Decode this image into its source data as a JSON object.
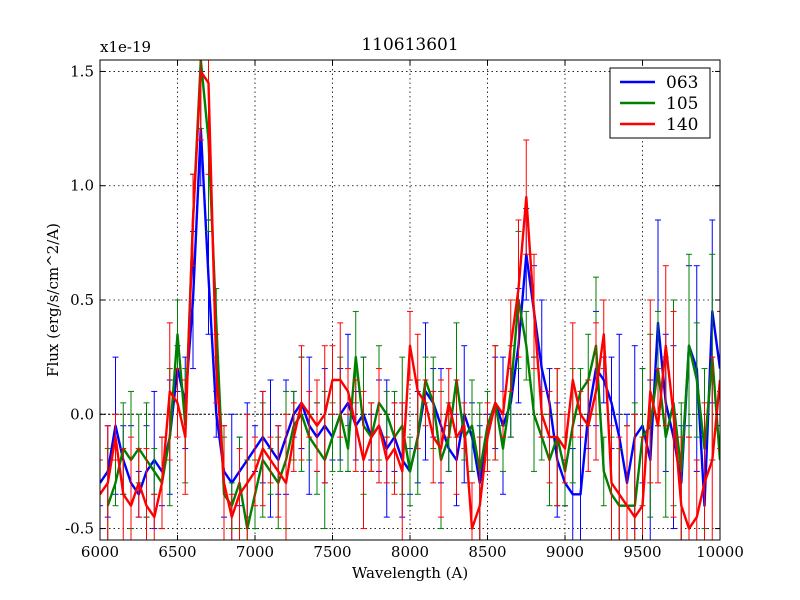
{
  "chart_data": {
    "type": "line",
    "title": "110613601",
    "xlabel": "Wavelength (A)",
    "ylabel": "Flux (erg/s/cm^2/A)",
    "y_multiplier_label": "x1e-19",
    "xlim": [
      6000,
      10000
    ],
    "ylim": [
      -0.55,
      1.55
    ],
    "xticks": [
      6000,
      6500,
      7000,
      7500,
      8000,
      8500,
      9000,
      9500,
      10000
    ],
    "xtick_labels": [
      "6000",
      "6500",
      "7000",
      "7500",
      "8000",
      "8500",
      "9000",
      "9500",
      "10000"
    ],
    "yticks": [
      -0.5,
      0.0,
      0.5,
      1.0,
      1.5
    ],
    "ytick_labels": [
      "-0.5",
      "0.0",
      "0.5",
      "1.0",
      "1.5"
    ],
    "grid": true,
    "legend_position": "top-right",
    "series": [
      {
        "name": "063",
        "color": "#0000ff",
        "x": [
          6000,
          6050,
          6100,
          6150,
          6200,
          6250,
          6300,
          6350,
          6400,
          6450,
          6500,
          6550,
          6600,
          6650,
          6700,
          6750,
          6800,
          6850,
          6900,
          6950,
          7000,
          7050,
          7100,
          7150,
          7200,
          7250,
          7300,
          7350,
          7400,
          7450,
          7500,
          7550,
          7600,
          7650,
          7700,
          7750,
          7800,
          7850,
          7900,
          7950,
          8000,
          8050,
          8100,
          8150,
          8200,
          8250,
          8300,
          8350,
          8400,
          8450,
          8500,
          8550,
          8600,
          8650,
          8700,
          8750,
          8800,
          8850,
          8900,
          8950,
          9000,
          9050,
          9100,
          9150,
          9200,
          9250,
          9300,
          9350,
          9400,
          9450,
          9500,
          9550,
          9600,
          9650,
          9700,
          9750,
          9800,
          9850,
          9900,
          9950,
          10000
        ],
        "y": [
          -0.3,
          -0.25,
          -0.05,
          -0.2,
          -0.3,
          -0.35,
          -0.25,
          -0.2,
          -0.25,
          -0.1,
          0.2,
          0.05,
          0.5,
          1.25,
          0.6,
          0.0,
          -0.25,
          -0.3,
          -0.25,
          -0.2,
          -0.15,
          -0.1,
          -0.15,
          -0.2,
          -0.1,
          0.0,
          0.05,
          -0.05,
          -0.1,
          -0.05,
          -0.1,
          0.0,
          0.05,
          -0.05,
          0.0,
          -0.1,
          -0.05,
          -0.15,
          -0.1,
          -0.2,
          -0.25,
          -0.1,
          0.1,
          0.05,
          -0.05,
          -0.15,
          -0.2,
          0.0,
          -0.1,
          -0.3,
          -0.1,
          0.05,
          -0.05,
          0.05,
          0.3,
          0.7,
          0.45,
          0.2,
          0.05,
          -0.2,
          -0.3,
          -0.35,
          -0.35,
          0.0,
          0.2,
          0.15,
          0.05,
          -0.1,
          -0.3,
          -0.1,
          -0.05,
          -0.2,
          0.4,
          0.05,
          -0.1,
          -0.3,
          0.3,
          0.2,
          -0.4,
          0.45,
          0.2
        ]
      },
      {
        "name": "105",
        "color": "#008000",
        "x": [
          6050,
          6100,
          6150,
          6200,
          6250,
          6300,
          6350,
          6400,
          6450,
          6500,
          6550,
          6600,
          6650,
          6700,
          6750,
          6800,
          6850,
          6900,
          6950,
          7000,
          7050,
          7100,
          7150,
          7200,
          7250,
          7300,
          7350,
          7400,
          7450,
          7500,
          7550,
          7600,
          7650,
          7700,
          7750,
          7800,
          7850,
          7900,
          7950,
          8000,
          8050,
          8100,
          8150,
          8200,
          8250,
          8300,
          8350,
          8400,
          8450,
          8500,
          8550,
          8600,
          8650,
          8700,
          8750,
          8800,
          8850,
          8900,
          8950,
          9000,
          9050,
          9100,
          9150,
          9200,
          9250,
          9300,
          9350,
          9400,
          9450,
          9500,
          9550,
          9600,
          9650,
          9700,
          9750,
          9800,
          9850,
          9900,
          9950,
          10000
        ],
        "y": [
          -0.4,
          -0.3,
          -0.15,
          -0.2,
          -0.15,
          -0.2,
          -0.25,
          -0.3,
          -0.1,
          0.35,
          -0.05,
          0.85,
          1.55,
          1.2,
          0.4,
          -0.35,
          -0.4,
          -0.3,
          -0.5,
          -0.35,
          -0.2,
          -0.25,
          -0.3,
          -0.2,
          -0.05,
          0.0,
          -0.1,
          -0.15,
          -0.2,
          -0.1,
          0.0,
          -0.15,
          0.25,
          -0.05,
          -0.1,
          0.05,
          0.0,
          -0.1,
          -0.05,
          -0.25,
          -0.1,
          0.15,
          0.05,
          -0.2,
          -0.1,
          0.15,
          -0.1,
          -0.05,
          -0.25,
          -0.05,
          0.05,
          -0.15,
          0.1,
          0.5,
          0.3,
          0.0,
          -0.1,
          -0.2,
          -0.1,
          -0.25,
          -0.05,
          0.1,
          0.15,
          0.3,
          -0.25,
          -0.35,
          -0.4,
          -0.4,
          -0.4,
          -0.1,
          -0.05,
          0.2,
          -0.1,
          0.05,
          -0.25,
          0.3,
          0.15,
          -0.15,
          0.25,
          -0.2
        ]
      },
      {
        "name": "140",
        "color": "#ff0000",
        "x": [
          6000,
          6050,
          6100,
          6150,
          6200,
          6250,
          6300,
          6350,
          6400,
          6450,
          6500,
          6550,
          6600,
          6650,
          6700,
          6750,
          6800,
          6850,
          6900,
          6950,
          7000,
          7050,
          7100,
          7150,
          7200,
          7250,
          7300,
          7350,
          7400,
          7450,
          7500,
          7550,
          7600,
          7650,
          7700,
          7750,
          7800,
          7850,
          7900,
          7950,
          8000,
          8050,
          8100,
          8150,
          8200,
          8250,
          8300,
          8350,
          8400,
          8450,
          8500,
          8550,
          8600,
          8650,
          8700,
          8750,
          8800,
          8850,
          8900,
          8950,
          9000,
          9050,
          9100,
          9150,
          9200,
          9250,
          9300,
          9350,
          9400,
          9450,
          9500,
          9550,
          9600,
          9650,
          9700,
          9750,
          9800,
          9850,
          9900,
          9950,
          10000
        ],
        "y": [
          -0.35,
          -0.3,
          -0.1,
          -0.35,
          -0.4,
          -0.3,
          -0.4,
          -0.45,
          -0.3,
          0.1,
          0.05,
          -0.1,
          0.85,
          1.5,
          1.45,
          0.2,
          -0.3,
          -0.45,
          -0.35,
          -0.3,
          -0.25,
          -0.15,
          -0.2,
          -0.25,
          -0.3,
          -0.1,
          0.05,
          0.0,
          -0.05,
          0.0,
          0.15,
          0.15,
          0.1,
          -0.05,
          -0.2,
          -0.1,
          -0.05,
          -0.2,
          -0.15,
          -0.25,
          0.3,
          0.1,
          0.05,
          -0.1,
          -0.15,
          0.05,
          -0.1,
          -0.05,
          -0.5,
          -0.4,
          -0.1,
          0.05,
          0.0,
          0.3,
          0.55,
          0.95,
          0.45,
          0.0,
          -0.1,
          -0.1,
          -0.15,
          0.15,
          0.0,
          -0.05,
          0.1,
          0.35,
          -0.3,
          -0.35,
          -0.4,
          -0.45,
          -0.4,
          0.1,
          -0.05,
          0.3,
          0.0,
          -0.4,
          -0.5,
          -0.45,
          -0.3,
          -0.2,
          0.15
        ]
      }
    ]
  }
}
